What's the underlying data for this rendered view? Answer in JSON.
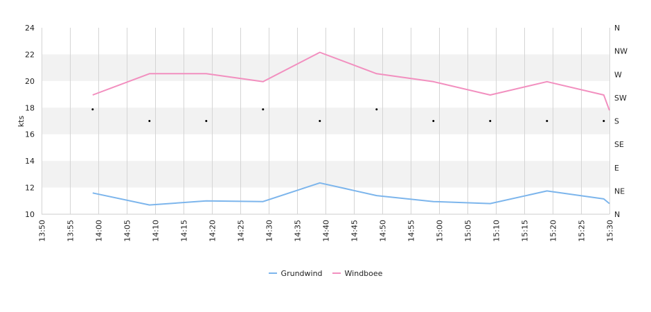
{
  "chart_data": {
    "type": "line",
    "ylabel": "kts",
    "ylim": [
      10,
      24
    ],
    "y_ticks": [
      "10",
      "12",
      "14",
      "16",
      "18",
      "20",
      "22",
      "24"
    ],
    "x_ticks": [
      "13:50",
      "13:55",
      "14:00",
      "14:05",
      "14:10",
      "14:15",
      "14:20",
      "14:25",
      "14:30",
      "14:35",
      "14:40",
      "14:45",
      "14:50",
      "14:55",
      "15:00",
      "15:05",
      "15:10",
      "15:15",
      "15:20",
      "15:25",
      "15:30"
    ],
    "xlim": [
      "13:50",
      "15:30"
    ],
    "right_axis_labels": [
      "N",
      "NW",
      "W",
      "SW",
      "S",
      "SE",
      "E",
      "NE",
      "N"
    ],
    "grid": true,
    "legend_position": "bottom",
    "series": [
      {
        "name": "Grundwind",
        "color": "#7cb5ec",
        "x": [
          "13:59",
          "14:09",
          "14:19",
          "14:29",
          "14:39",
          "14:49",
          "14:59",
          "15:09",
          "15:19",
          "15:29",
          "15:30"
        ],
        "values": [
          11.6,
          10.7,
          11.0,
          10.95,
          12.35,
          11.4,
          10.95,
          10.8,
          11.75,
          11.15,
          10.8
        ]
      },
      {
        "name": "Windboee",
        "color": "#f28fbf",
        "x": [
          "13:59",
          "14:09",
          "14:19",
          "14:29",
          "14:39",
          "14:49",
          "14:59",
          "15:09",
          "15:19",
          "15:29",
          "15:30"
        ],
        "values": [
          18.95,
          20.55,
          20.55,
          19.95,
          22.15,
          20.55,
          19.95,
          18.95,
          19.95,
          18.95,
          17.8
        ]
      }
    ],
    "direction_points": {
      "x": [
        "13:59",
        "14:09",
        "14:19",
        "14:29",
        "14:39",
        "14:49",
        "14:59",
        "15:09",
        "15:19",
        "15:29"
      ],
      "values": [
        "SSW",
        "S",
        "S",
        "SSW",
        "S",
        "SSW",
        "S",
        "S",
        "S",
        "S"
      ]
    }
  }
}
